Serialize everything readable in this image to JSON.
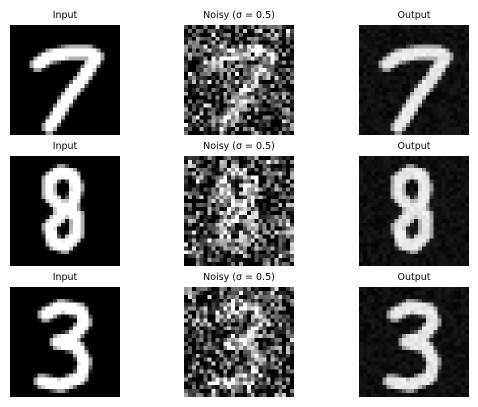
{
  "figure": {
    "rows": [
      {
        "digit": "7",
        "panels": [
          {
            "kind": "input",
            "title": "Input"
          },
          {
            "kind": "noisy",
            "title": "Noisy (σ = 0.5)"
          },
          {
            "kind": "output",
            "title": "Output"
          }
        ]
      },
      {
        "digit": "8",
        "panels": [
          {
            "kind": "input",
            "title": "Input"
          },
          {
            "kind": "noisy",
            "title": "Noisy (σ = 0.5)"
          },
          {
            "kind": "output",
            "title": "Output"
          }
        ]
      },
      {
        "digit": "3",
        "panels": [
          {
            "kind": "input",
            "title": "Input"
          },
          {
            "kind": "noisy",
            "title": "Noisy (σ = 0.5)"
          },
          {
            "kind": "output",
            "title": "Output"
          }
        ]
      }
    ],
    "colormap": "gray",
    "noise_sigma": 0.5
  }
}
